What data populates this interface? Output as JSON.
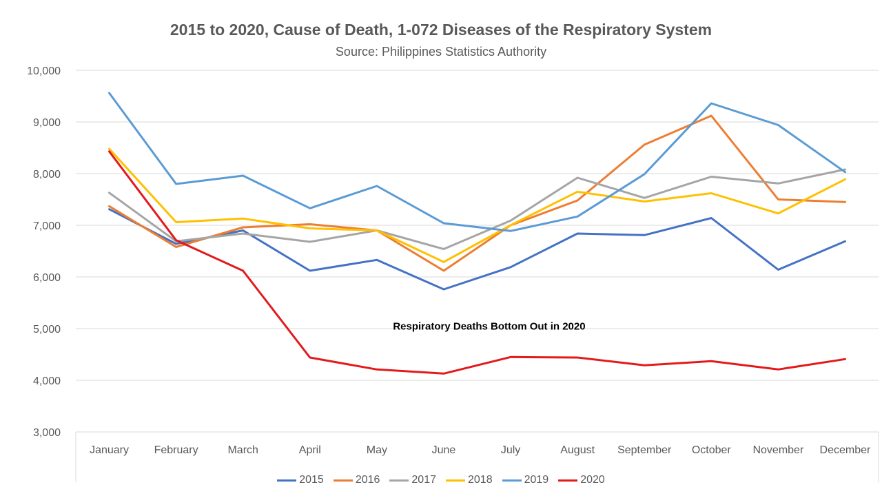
{
  "chart_data": {
    "type": "line",
    "title": "2015 to 2020, Cause of Death, 1-072 Diseases of the Respiratory System",
    "subtitle": "Source: Philippines Statistics Authority",
    "xlabel": "",
    "ylabel": "",
    "ylim": [
      3000,
      10000
    ],
    "yticks": [
      3000,
      4000,
      5000,
      6000,
      7000,
      8000,
      9000,
      10000
    ],
    "ytick_labels": [
      "3,000",
      "4,000",
      "5,000",
      "6,000",
      "7,000",
      "8,000",
      "9,000",
      "10,000"
    ],
    "grid": true,
    "legend_position": "bottom",
    "categories": [
      "January",
      "February",
      "March",
      "April",
      "May",
      "June",
      "July",
      "August",
      "September",
      "October",
      "November",
      "December"
    ],
    "series": [
      {
        "name": "2015",
        "color": "#4472c4",
        "values": [
          7310,
          6640,
          6900,
          6120,
          6330,
          5760,
          6190,
          6840,
          6810,
          7140,
          6140,
          6690
        ]
      },
      {
        "name": "2016",
        "color": "#ed7d31",
        "values": [
          7370,
          6580,
          6960,
          7020,
          6900,
          6120,
          7000,
          7480,
          8560,
          9120,
          7500,
          7450
        ]
      },
      {
        "name": "2017",
        "color": "#a5a5a5",
        "values": [
          7630,
          6690,
          6840,
          6680,
          6900,
          6540,
          7090,
          7920,
          7530,
          7940,
          7810,
          8080
        ]
      },
      {
        "name": "2018",
        "color": "#ffc000",
        "values": [
          8480,
          7060,
          7130,
          6940,
          6900,
          6290,
          7000,
          7650,
          7460,
          7620,
          7230,
          7890
        ]
      },
      {
        "name": "2019",
        "color": "#5b9bd5",
        "values": [
          9560,
          7800,
          7960,
          7330,
          7760,
          7040,
          6890,
          7170,
          7990,
          9360,
          8940,
          8030
        ]
      },
      {
        "name": "2020",
        "color": "#e31a1c",
        "values": [
          8430,
          6710,
          6120,
          4440,
          4210,
          4130,
          4450,
          4440,
          4290,
          4370,
          4210,
          4410
        ]
      }
    ],
    "annotations": [
      {
        "text": "Respiratory Deaths Bottom Out in 2020",
        "x": "June",
        "y": 4980
      }
    ]
  }
}
